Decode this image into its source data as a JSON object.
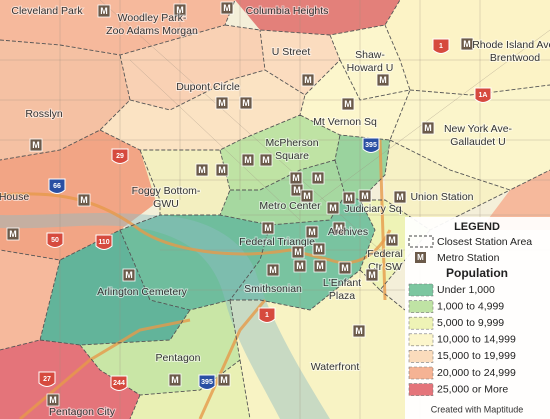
{
  "station_icon": "M",
  "stations": [
    {
      "label": [
        "Cleveland Park"
      ]
    },
    {
      "label": [
        "Columbia Heights"
      ]
    },
    {
      "label": [
        "Woodley Park-",
        "Zoo Adams Morgan"
      ]
    },
    {
      "label": [
        "U Street"
      ]
    },
    {
      "label": [
        "Shaw-",
        "Howard U"
      ]
    },
    {
      "label": [
        "Rhode Island Ave-",
        "Brentwood"
      ]
    },
    {
      "label": [
        "Dupont Circle"
      ]
    },
    {
      "label": [
        "Mt Vernon Sq"
      ]
    },
    {
      "label": [
        "McPherson",
        "Square"
      ]
    },
    {
      "label": [
        "New York Ave-",
        "Gallaudet U"
      ]
    },
    {
      "label": [
        "Rosslyn"
      ]
    },
    {
      "label": [
        "Foggy Bottom-",
        "GWU"
      ]
    },
    {
      "label": [
        "Metro Center"
      ]
    },
    {
      "label": [
        "Judiciary Sq"
      ]
    },
    {
      "label": [
        "Union Station"
      ]
    },
    {
      "label": [
        "House"
      ]
    },
    {
      "label": [
        "Federal Triangle"
      ]
    },
    {
      "label": [
        "Archives"
      ]
    },
    {
      "label": [
        "Federal",
        "Ctr SW"
      ]
    },
    {
      "label": [
        "Arlington Cemetery"
      ]
    },
    {
      "label": [
        "Smithsonian"
      ]
    },
    {
      "label": [
        "L'Enfant",
        "Plaza"
      ]
    },
    {
      "label": [
        "Waterfront"
      ]
    },
    {
      "label": [
        "Pentagon"
      ]
    },
    {
      "label": [
        "Pentagon City"
      ]
    }
  ],
  "shields": [
    "29",
    "66",
    "50",
    "110",
    "395",
    "1",
    "1A",
    "1",
    "395",
    "27",
    "244"
  ],
  "legend": {
    "title": "LEGEND",
    "area": "Closest Station Area",
    "station": "Metro Station",
    "population_title": "Population",
    "classes": [
      {
        "label": "Under 1,000",
        "color": "#7cc6a0"
      },
      {
        "label": "1,000 to 4,999",
        "color": "#bfe3a4"
      },
      {
        "label": "5,000 to 9,999",
        "color": "#eef3b6"
      },
      {
        "label": "10,000 to 14,999",
        "color": "#fcf6cc"
      },
      {
        "label": "15,000 to 19,999",
        "color": "#fbdcbc"
      },
      {
        "label": "20,000 to 24,999",
        "color": "#f5b394"
      },
      {
        "label": "25,000 or More",
        "color": "#e4747a"
      }
    ],
    "credit": "Created with Maptitude"
  }
}
